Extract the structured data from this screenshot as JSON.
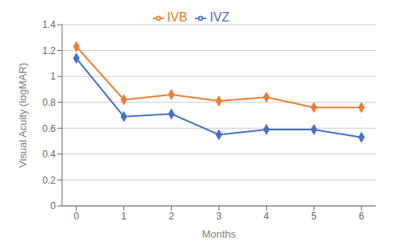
{
  "chart_data": {
    "type": "line",
    "xlabel": "Months",
    "ylabel": "Visual Acuity (logMAR)",
    "x": [
      0,
      1,
      2,
      3,
      4,
      5,
      6
    ],
    "series": [
      {
        "name": "IVZ",
        "color": "#4472C4",
        "values": [
          1.14,
          0.69,
          0.71,
          0.55,
          0.59,
          0.59,
          0.53
        ]
      },
      {
        "name": "IVB",
        "color": "#ED7D31",
        "values": [
          1.23,
          0.82,
          0.86,
          0.81,
          0.84,
          0.76,
          0.76
        ]
      }
    ],
    "xlim": [
      -0.3,
      6.3
    ],
    "xticks": [
      0,
      1,
      2,
      3,
      4,
      5,
      6
    ],
    "ylim": [
      0,
      1.4
    ],
    "yticks": [
      0,
      0.2,
      0.4,
      0.6,
      0.8,
      1,
      1.2,
      1.4
    ],
    "grid": "y",
    "legend": "top",
    "marker": "diamond"
  }
}
